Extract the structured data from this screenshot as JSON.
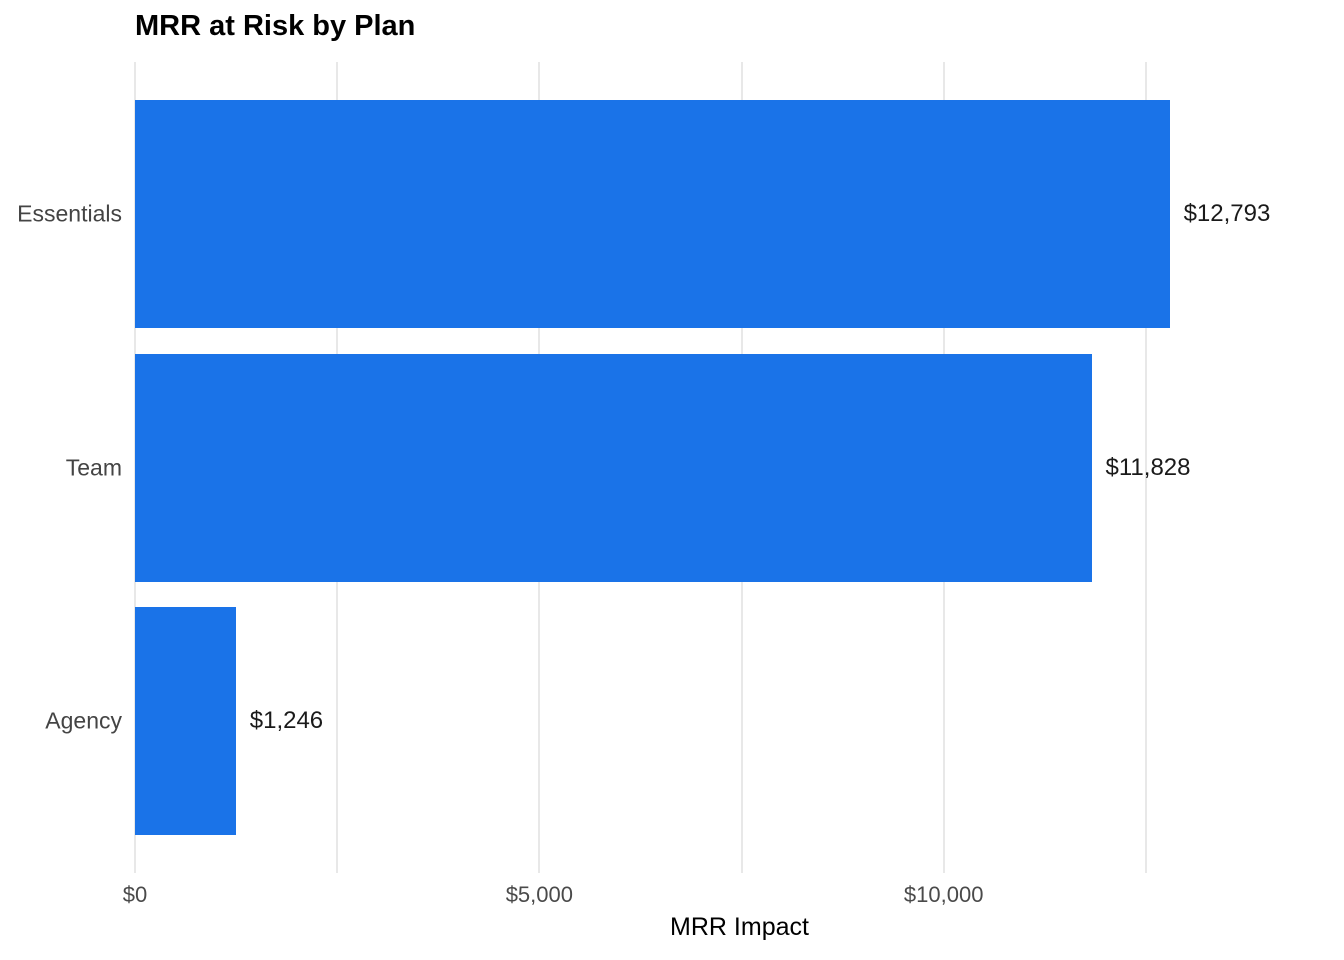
{
  "chart": {
    "title": "MRR at Risk by Plan",
    "xlabel": "MRR Impact"
  },
  "chart_data": {
    "type": "bar",
    "orientation": "horizontal",
    "title": "MRR at Risk by Plan",
    "xlabel": "MRR Impact",
    "ylabel": "",
    "categories": [
      "Essentials",
      "Team",
      "Agency"
    ],
    "values": [
      12793,
      11828,
      1246
    ],
    "value_labels": [
      "$12,793",
      "$11,828",
      "$1,246"
    ],
    "xlim": [
      0,
      14950
    ],
    "xticks": [
      0,
      5000,
      10000
    ],
    "xtick_labels": [
      "$0",
      "$5,000",
      "$10,000"
    ],
    "gridline_values": [
      0,
      2500,
      5000,
      7500,
      10000,
      12500
    ],
    "grid": true,
    "legend": false,
    "bar_color": "#1a73e8",
    "gridline_color": "#e8e8e8",
    "background_color": "#ffffff",
    "title_color": "#000000",
    "category_label_color": "#444444",
    "value_label_color": "#1a1a1a",
    "tick_label_color": "#4a4a4a"
  }
}
